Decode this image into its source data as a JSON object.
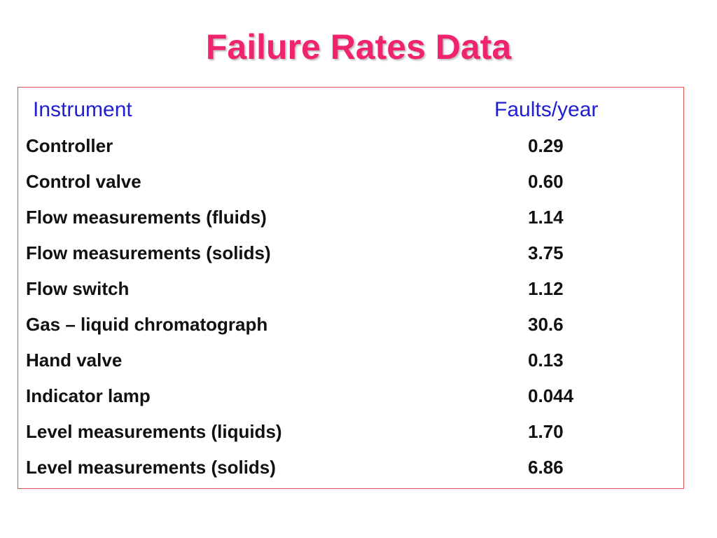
{
  "slide": {
    "title": "Failure Rates Data"
  },
  "table": {
    "headers": {
      "instrument": "Instrument",
      "faults": "Faults/year"
    },
    "rows": [
      {
        "instrument": "Controller",
        "faults": "0.29"
      },
      {
        "instrument": "Control valve",
        "faults": "0.60"
      },
      {
        "instrument": "Flow measurements (fluids)",
        "faults": "1.14"
      },
      {
        "instrument": "Flow measurements (solids)",
        "faults": "3.75"
      },
      {
        "instrument": "Flow switch",
        "faults": "1.12"
      },
      {
        "instrument": "Gas – liquid chromatograph",
        "faults": "30.6"
      },
      {
        "instrument": "Hand valve",
        "faults": "0.13"
      },
      {
        "instrument": "Indicator lamp",
        "faults": "0.044"
      },
      {
        "instrument": "Level measurements (liquids)",
        "faults": "1.70"
      },
      {
        "instrument": "Level measurements (solids)",
        "faults": "6.86"
      }
    ]
  },
  "colors": {
    "title": "#f0236e",
    "header": "#1f1fd0",
    "border": "#d9534f",
    "text": "#111111"
  }
}
